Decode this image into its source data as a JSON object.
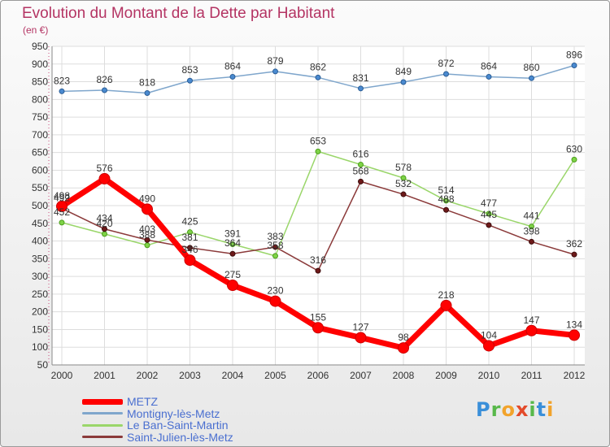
{
  "title": "Evolution du Montant de la Dette par Habitant",
  "unit_label": "(en €)",
  "brand": {
    "letters": [
      {
        "char": "P",
        "color": "#3a8fd9"
      },
      {
        "char": "r",
        "color": "#58b84a"
      },
      {
        "char": "o",
        "color": "#f2a32b"
      },
      {
        "char": "x",
        "color": "#e34a2a"
      },
      {
        "char": "i",
        "color": "#58b84a"
      },
      {
        "char": "t",
        "color": "#3a8fd9"
      },
      {
        "char": "i",
        "color": "#f2a32b"
      }
    ]
  },
  "chart_data": {
    "type": "line",
    "title": "Evolution du Montant de la Dette par Habitant",
    "ylabel": "(en €)",
    "xlabel": "",
    "ylim": [
      50,
      950
    ],
    "ytick_step": 50,
    "grid": true,
    "legend_position": "bottom-left",
    "categories": [
      "2000",
      "2001",
      "2002",
      "2003",
      "2004",
      "2005",
      "2006",
      "2007",
      "2008",
      "2009",
      "2010",
      "2011",
      "2012"
    ],
    "series": [
      {
        "name": "METZ",
        "color": "#ff0000",
        "marker_color": "#ff0000",
        "marker_stroke": "#cc0000",
        "line_width": 7,
        "marker_r": 6.5,
        "legend_thickness": 7,
        "values": [
          498,
          576,
          490,
          346,
          275,
          230,
          155,
          127,
          98,
          218,
          104,
          147,
          134
        ]
      },
      {
        "name": "Montigny-lès-Metz",
        "color": "#7fa6cc",
        "marker_color": "#4a8ad0",
        "marker_stroke": "#2a5d95",
        "line_width": 1.5,
        "marker_r": 3,
        "legend_thickness": 3,
        "values": [
          823,
          826,
          818,
          853,
          864,
          879,
          862,
          831,
          849,
          872,
          864,
          860,
          896
        ]
      },
      {
        "name": "Le Ban-Saint-Martin",
        "color": "#9ad66a",
        "marker_color": "#7ed347",
        "marker_stroke": "#4c9e1c",
        "line_width": 1.5,
        "marker_r": 3,
        "legend_thickness": 3,
        "values": [
          452,
          420,
          388,
          425,
          391,
          358,
          653,
          616,
          578,
          514,
          477,
          441,
          630
        ]
      },
      {
        "name": "Saint-Julien-lès-Metz",
        "color": "#8b3a3a",
        "marker_color": "#6e1a1a",
        "marker_stroke": "#3d0c0c",
        "line_width": 1.5,
        "marker_r": 3,
        "legend_thickness": 3,
        "values": [
          492,
          434,
          403,
          381,
          364,
          383,
          316,
          568,
          532,
          488,
          445,
          398,
          362
        ]
      }
    ]
  }
}
